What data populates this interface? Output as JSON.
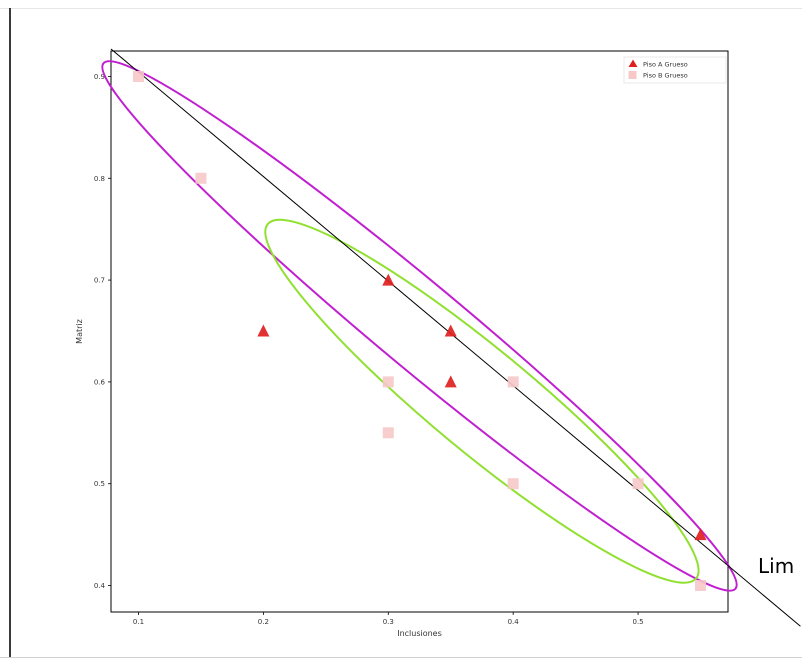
{
  "chart_data": {
    "type": "scatter",
    "title": "",
    "xlabel": "Inclusiones",
    "ylabel": "Matriz",
    "xlim": [
      0.078,
      0.572
    ],
    "ylim": [
      0.374,
      0.925
    ],
    "x_ticks": [
      0.1,
      0.2,
      0.3,
      0.4,
      0.5
    ],
    "y_ticks": [
      0.4,
      0.5,
      0.6,
      0.7,
      0.8,
      0.9
    ],
    "x_tick_labels": [
      "0.1",
      "0.2",
      "0.3",
      "0.4",
      "0.5"
    ],
    "y_tick_labels": [
      "0.4",
      "0.5",
      "0.6",
      "0.7",
      "0.8",
      "0.9"
    ],
    "legend_position": "top-right",
    "series": [
      {
        "name": "Piso A Grueso",
        "marker": "triangle",
        "color": "#e02020",
        "points": [
          {
            "x": 0.2,
            "y": 0.65
          },
          {
            "x": 0.3,
            "y": 0.7
          },
          {
            "x": 0.35,
            "y": 0.65
          },
          {
            "x": 0.35,
            "y": 0.6
          },
          {
            "x": 0.55,
            "y": 0.45
          }
        ]
      },
      {
        "name": "Piso B Grueso",
        "marker": "square",
        "color": "#f6c8c8",
        "points": [
          {
            "x": 0.1,
            "y": 0.9
          },
          {
            "x": 0.15,
            "y": 0.8
          },
          {
            "x": 0.3,
            "y": 0.6
          },
          {
            "x": 0.3,
            "y": 0.55
          },
          {
            "x": 0.4,
            "y": 0.6
          },
          {
            "x": 0.4,
            "y": 0.5
          },
          {
            "x": 0.5,
            "y": 0.5
          },
          {
            "x": 0.55,
            "y": 0.4
          }
        ]
      }
    ],
    "line": {
      "label": "Lim",
      "color": "#000000",
      "x1": 0.078,
      "y1": 0.927,
      "x2": 0.63,
      "y2": 0.36
    },
    "ellipses": [
      {
        "color": "#c020d0",
        "center": {
          "x": 0.325,
          "y": 0.655
        },
        "axis_end_major": {
          "x": 0.578,
          "y": 0.397
        },
        "axis_end_minor": {
          "x": 0.351,
          "y": 0.682
        }
      },
      {
        "color": "#90e030",
        "center": {
          "x": 0.375,
          "y": 0.581
        },
        "axis_end_major": {
          "x": 0.5465,
          "y": 0.407
        },
        "axis_end_minor": {
          "x": 0.407,
          "y": 0.612
        }
      }
    ]
  }
}
